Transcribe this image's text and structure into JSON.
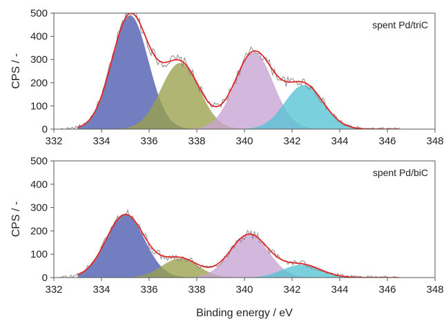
{
  "xlabel": "Binding energy / eV",
  "colors": {
    "comp1": "#4a5aad",
    "comp2": "#9aa04c",
    "comp3": "#c6a3d2",
    "comp4": "#56c3d3",
    "envelope": "#e02626",
    "raw": "#8a8a8a"
  },
  "chart_data": [
    {
      "type": "area",
      "panel_label": "spent Pd/triC",
      "ylabel": "CPS / -",
      "xlim": [
        332,
        348
      ],
      "ylim": [
        0,
        500
      ],
      "xticks": [
        "332",
        "334",
        "336",
        "338",
        "340",
        "342",
        "344",
        "346",
        "348"
      ],
      "yticks": [
        "0",
        "100",
        "200",
        "300",
        "400",
        "500"
      ],
      "grid": false,
      "peaks": [
        {
          "center": 335.2,
          "height": 490,
          "fwhm": 1.8
        },
        {
          "center": 337.3,
          "height": 285,
          "fwhm": 1.9
        },
        {
          "center": 340.4,
          "height": 330,
          "fwhm": 1.9
        },
        {
          "center": 342.5,
          "height": 190,
          "fwhm": 1.9
        }
      ],
      "fit_range": [
        333.0,
        346.5
      ]
    },
    {
      "type": "area",
      "panel_label": "spent Pd/biC",
      "ylabel": "CPS / -",
      "xlim": [
        332,
        348
      ],
      "ylim": [
        0,
        500
      ],
      "xticks": [
        "332",
        "334",
        "336",
        "338",
        "340",
        "342",
        "344",
        "346",
        "348"
      ],
      "yticks": [
        "0",
        "100",
        "200",
        "300",
        "400",
        "500"
      ],
      "grid": false,
      "peaks": [
        {
          "center": 335.0,
          "height": 270,
          "fwhm": 1.9
        },
        {
          "center": 337.3,
          "height": 82,
          "fwhm": 1.8
        },
        {
          "center": 340.2,
          "height": 185,
          "fwhm": 1.9
        },
        {
          "center": 342.4,
          "height": 55,
          "fwhm": 1.9
        }
      ],
      "fit_range": [
        333.0,
        346.5
      ]
    }
  ]
}
